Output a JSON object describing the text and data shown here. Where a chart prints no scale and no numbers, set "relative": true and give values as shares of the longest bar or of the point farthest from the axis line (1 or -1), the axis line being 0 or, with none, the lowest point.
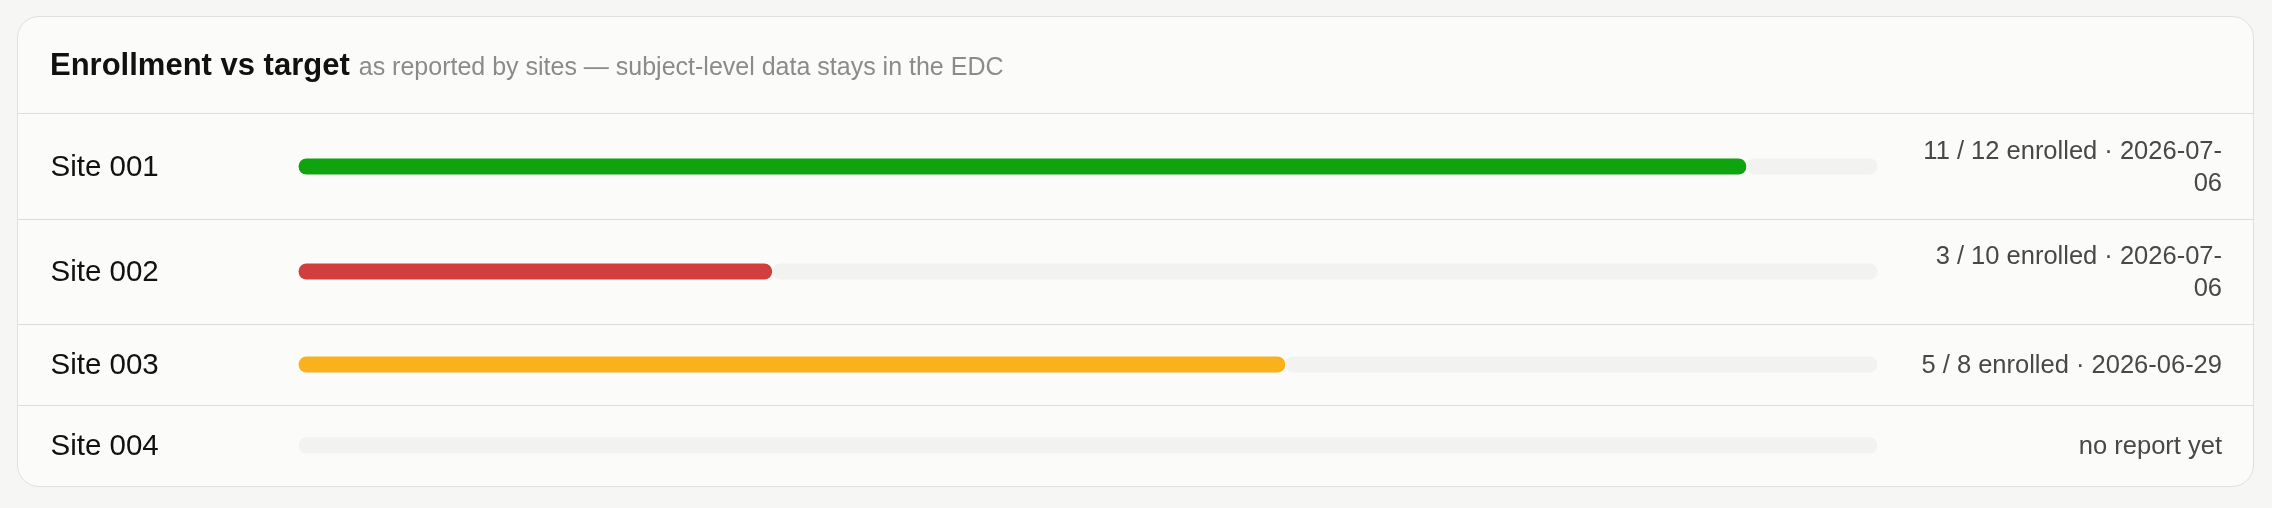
{
  "chart_data": {
    "type": "bar",
    "orientation": "horizontal",
    "stacked": true,
    "relative": true,
    "title": "Enrollment vs target",
    "subtitle": "as reported by sites — subject-level data stays in the EDC",
    "categories": [
      "Site 001",
      "Site 002",
      "Site 003",
      "Site 004"
    ],
    "series": [
      {
        "values": [
          0.917,
          0.3,
          0.625,
          null
        ],
        "colors": [
          "#10a310",
          "#d03e3e",
          "#f9b11c",
          null
        ]
      },
      {
        "values": [
          0.083,
          0.7,
          0.375,
          1
        ],
        "color": "#f2f2f0"
      }
    ],
    "annotations": [
      "11 / 12 enrolled · 2026-07-06",
      "3 / 10 enrolled · 2026-07-06",
      "5 / 8 enrolled · 2026-06-29",
      "no report yet"
    ]
  }
}
